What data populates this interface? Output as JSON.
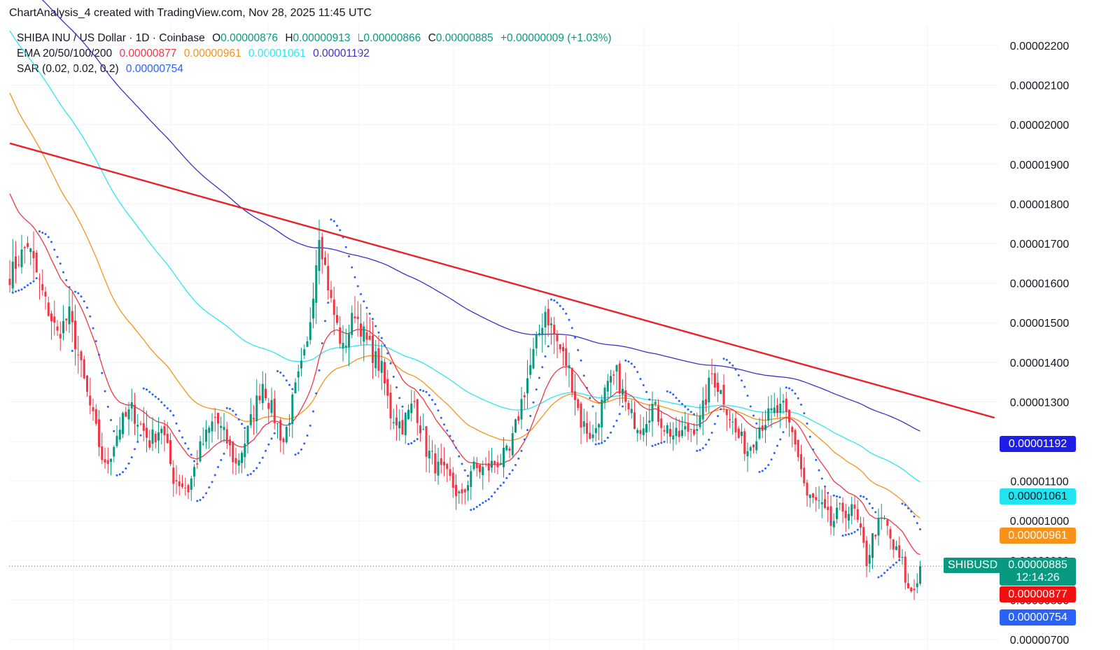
{
  "caption": "ChartAnalysis_4 created with TradingView.com, Nov 28, 2025 11:45 UTC",
  "legend": {
    "title": "SHIBA INU / US Dollar · 1D · Coinbase",
    "o_label": "O",
    "o_value": "0.00000876",
    "h_label": "H",
    "h_value": "0.00000913",
    "l_label": "L",
    "l_value": "0.00000866",
    "c_label": "C",
    "c_value": "0.00000885",
    "change": "+0.00000009 (+1.03%)",
    "ema_label": "EMA 20/50/100/200",
    "ema20": "0.00000877",
    "ema50": "0.00000961",
    "ema100": "0.00001061",
    "ema200": "0.00001192",
    "sar_label": "SAR (0.02, 0.02, 0.2)",
    "sar": "0.00000754"
  },
  "badges": {
    "symbol": "SHIBUSD",
    "last_price": "0.00000885",
    "countdown": "12:14:26",
    "ema200": "0.00001192",
    "ema100": "0.00001061",
    "ema50": "0.00000961",
    "ema20": "0.00000877",
    "sar": "0.00000754"
  },
  "colors": {
    "up": "#089981",
    "down": "#F23645",
    "ema20": "#F23645",
    "ema50": "#F7931A",
    "ema100": "#2EE6F0",
    "ema200": "#3D2FC9",
    "sar": "#2962FF",
    "trendline": "#E8222C"
  },
  "chart_data": {
    "type": "candlestick",
    "title": "SHIBA INU / US Dollar · 1D · Coinbase",
    "ylim": [
      6.9e-06,
      2.26e-05
    ],
    "y_ticks": [
      "0.00002200",
      "0.00002100",
      "0.00002000",
      "0.00001900",
      "0.00001800",
      "0.00001700",
      "0.00001600",
      "0.00001500",
      "0.00001400",
      "0.00001300",
      "0.00001200",
      "0.00001100",
      "0.00001000",
      "0.00000900",
      "0.00000800",
      "0.00000700"
    ],
    "grid": true,
    "anchors": [
      [
        0,
        1.62
      ],
      [
        6,
        1.7
      ],
      [
        12,
        1.55
      ],
      [
        16,
        1.47
      ],
      [
        20,
        1.52
      ],
      [
        25,
        1.35
      ],
      [
        32,
        1.13
      ],
      [
        37,
        1.24
      ],
      [
        41,
        1.28
      ],
      [
        47,
        1.2
      ],
      [
        51,
        1.24
      ],
      [
        55,
        1.11
      ],
      [
        60,
        1.08
      ],
      [
        64,
        1.18
      ],
      [
        69,
        1.26
      ],
      [
        73,
        1.2
      ],
      [
        76,
        1.14
      ],
      [
        79,
        1.2
      ],
      [
        85,
        1.35
      ],
      [
        88,
        1.28
      ],
      [
        92,
        1.2
      ],
      [
        96,
        1.33
      ],
      [
        100,
        1.44
      ],
      [
        104,
        1.73
      ],
      [
        108,
        1.55
      ],
      [
        112,
        1.43
      ],
      [
        116,
        1.53
      ],
      [
        120,
        1.45
      ],
      [
        125,
        1.38
      ],
      [
        128,
        1.27
      ],
      [
        132,
        1.24
      ],
      [
        136,
        1.3
      ],
      [
        140,
        1.18
      ],
      [
        144,
        1.13
      ],
      [
        148,
        1.1
      ],
      [
        152,
        1.05
      ],
      [
        155,
        1.13
      ],
      [
        160,
        1.13
      ],
      [
        164,
        1.15
      ],
      [
        168,
        1.17
      ],
      [
        172,
        1.3
      ],
      [
        176,
        1.42
      ],
      [
        180,
        1.53
      ],
      [
        184,
        1.45
      ],
      [
        188,
        1.38
      ],
      [
        192,
        1.25
      ],
      [
        196,
        1.21
      ],
      [
        200,
        1.32
      ],
      [
        204,
        1.37
      ],
      [
        208,
        1.27
      ],
      [
        212,
        1.24
      ],
      [
        216,
        1.29
      ],
      [
        220,
        1.24
      ],
      [
        224,
        1.21
      ],
      [
        228,
        1.23
      ],
      [
        232,
        1.25
      ],
      [
        236,
        1.37
      ],
      [
        240,
        1.31
      ],
      [
        244,
        1.22
      ],
      [
        248,
        1.18
      ],
      [
        252,
        1.24
      ],
      [
        256,
        1.27
      ],
      [
        260,
        1.28
      ],
      [
        264,
        1.2
      ],
      [
        268,
        1.06
      ],
      [
        272,
        1.04
      ],
      [
        276,
        0.99
      ],
      [
        280,
        1.03
      ],
      [
        284,
        1.02
      ],
      [
        288,
        0.9
      ],
      [
        291,
        0.98
      ],
      [
        294,
        1.0
      ],
      [
        297,
        0.93
      ],
      [
        300,
        0.89
      ],
      [
        302,
        0.82
      ],
      [
        304,
        0.83
      ],
      [
        306,
        0.885
      ]
    ],
    "trendline": [
      [
        0,
        1.953e-05
      ],
      [
        331,
        1.26e-05
      ]
    ],
    "last_close": 8.85e-06
  }
}
